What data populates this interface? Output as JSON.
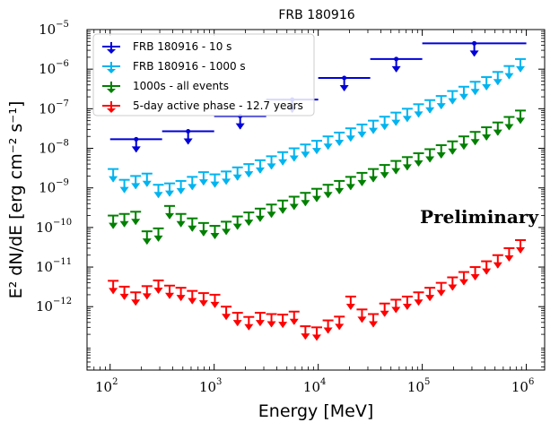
{
  "chart_data": {
    "type": "scatter",
    "title": "FRB 180916",
    "xlabel": "Energy [MeV]",
    "ylabel": "E² dN/dE [erg cm⁻² s⁻¹]",
    "xscale": "log",
    "yscale": "log",
    "xlim": [
      60,
      1500000
    ],
    "ylim": [
      2.5e-14,
      1e-05
    ],
    "x_ticks": [
      {
        "value": 100,
        "base": "10",
        "exp": "2"
      },
      {
        "value": 1000,
        "base": "10",
        "exp": "3"
      },
      {
        "value": 10000,
        "base": "10",
        "exp": "4"
      },
      {
        "value": 100000,
        "base": "10",
        "exp": "5"
      },
      {
        "value": 1000000,
        "base": "10",
        "exp": "6"
      }
    ],
    "y_ticks": [
      {
        "value": 1e-12,
        "base": "10",
        "exp": "−12"
      },
      {
        "value": 1e-11,
        "base": "10",
        "exp": "−11"
      },
      {
        "value": 1e-10,
        "base": "10",
        "exp": "−10"
      },
      {
        "value": 1e-09,
        "base": "10",
        "exp": "−9"
      },
      {
        "value": 1e-08,
        "base": "10",
        "exp": "−8"
      },
      {
        "value": 1e-07,
        "base": "10",
        "exp": "−7"
      },
      {
        "value": 1e-06,
        "base": "10",
        "exp": "−6"
      },
      {
        "value": 1e-05,
        "base": "10",
        "exp": "−5"
      }
    ],
    "legend_position": "top-left",
    "annotation": "Preliminary",
    "series": [
      {
        "name": "FRB 180916 - 10 s",
        "color": "#0000d9",
        "upper_limits": true,
        "x": [
          178,
          562,
          1778,
          5623,
          17783,
          56234,
          316228
        ],
        "xerr_low": [
          78,
          246,
          778,
          2461,
          7783,
          24611,
          216228
        ],
        "xerr_high": [
          138,
          438,
          1384,
          4377,
          13840,
          43766,
          683772
        ],
        "values": [
          1.7e-08,
          2.7e-08,
          6.5e-08,
          1.7e-07,
          6e-07,
          1.8e-06,
          4.5e-06
        ]
      },
      {
        "name": "FRB 180916 - 1000 s",
        "color": "#00b4f0",
        "upper_limits": true,
        "x": [
          107,
          137,
          176,
          226,
          291,
          373,
          479,
          616,
          791,
          1016,
          1305,
          1676,
          2153,
          2766,
          3553,
          4564,
          5863,
          7531,
          9675,
          12428,
          15965,
          20508,
          26345,
          33843,
          43475,
          55848,
          71742,
          92160,
          118390,
          152084,
          195367,
          250967,
          322391,
          414141,
          532002,
          683405,
          877896
        ],
        "values": [
          3e-09,
          1.6e-09,
          2e-09,
          2.3e-09,
          1.2e-09,
          1.3e-09,
          1.5e-09,
          1.9e-09,
          2.5e-09,
          2.2e-09,
          2.6e-09,
          3.3e-09,
          4e-09,
          5e-09,
          6.3e-09,
          8e-09,
          1e-08,
          1.25e-08,
          1.55e-08,
          2e-08,
          2.5e-08,
          3.2e-08,
          4e-08,
          5e-08,
          6.3e-08,
          8e-08,
          1e-07,
          1.3e-07,
          1.65e-07,
          2.1e-07,
          2.8e-07,
          3.6e-07,
          4.8e-07,
          6.3e-07,
          8.5e-07,
          1.2e-06,
          1.8e-06
        ]
      },
      {
        "name": "1000s - all events",
        "color": "#008000",
        "upper_limits": true,
        "x": [
          107,
          137,
          176,
          226,
          291,
          373,
          479,
          616,
          791,
          1016,
          1305,
          1676,
          2153,
          2766,
          3553,
          4564,
          5863,
          7531,
          9675,
          12428,
          15965,
          20508,
          26345,
          33843,
          43475,
          55848,
          71742,
          92160,
          118390,
          152084,
          195367,
          250967,
          322391,
          414141,
          532002,
          683405,
          877896
        ],
        "values": [
          2e-10,
          2.2e-10,
          2.5e-10,
          8e-11,
          9.5e-11,
          3.5e-10,
          2.2e-10,
          1.7e-10,
          1.3e-10,
          1.1e-10,
          1.4e-10,
          1.9e-10,
          2.4e-10,
          3e-10,
          3.8e-10,
          4.8e-10,
          6e-10,
          7.5e-10,
          9.5e-10,
          1.2e-09,
          1.5e-09,
          1.9e-09,
          2.4e-09,
          3e-09,
          3.8e-09,
          4.8e-09,
          6e-09,
          7.5e-09,
          9.5e-09,
          1.2e-08,
          1.5e-08,
          2e-08,
          2.6e-08,
          3.4e-08,
          4.5e-08,
          6.2e-08,
          9e-08
        ]
      },
      {
        "name": "5-day active phase - 12.7 years",
        "color": "#ff0000",
        "upper_limits": true,
        "x": [
          107,
          137,
          176,
          226,
          291,
          373,
          479,
          616,
          791,
          1016,
          1305,
          1676,
          2153,
          2766,
          3553,
          4564,
          5863,
          7531,
          9675,
          12428,
          15965,
          20508,
          26345,
          33843,
          43475,
          55848,
          71742,
          92160,
          118390,
          152084,
          195367,
          250967,
          322391,
          414141,
          532002,
          683405,
          877896
        ],
        "values": [
          4.5e-12,
          3.2e-12,
          2.3e-12,
          3.3e-12,
          4.6e-12,
          3.4e-12,
          3e-12,
          2.5e-12,
          2.2e-12,
          2e-12,
          1e-12,
          7e-13,
          5.5e-13,
          7e-13,
          6.5e-13,
          6.3e-13,
          7.5e-13,
          3.2e-13,
          3e-13,
          4.5e-13,
          5.6e-13,
          1.8e-12,
          8.5e-13,
          6.5e-13,
          1.2e-12,
          1.5e-12,
          1.8e-12,
          2.3e-12,
          3e-12,
          4e-12,
          5.5e-12,
          7.5e-12,
          1e-11,
          1.4e-11,
          2e-11,
          3e-11,
          4.8e-11
        ]
      }
    ]
  }
}
